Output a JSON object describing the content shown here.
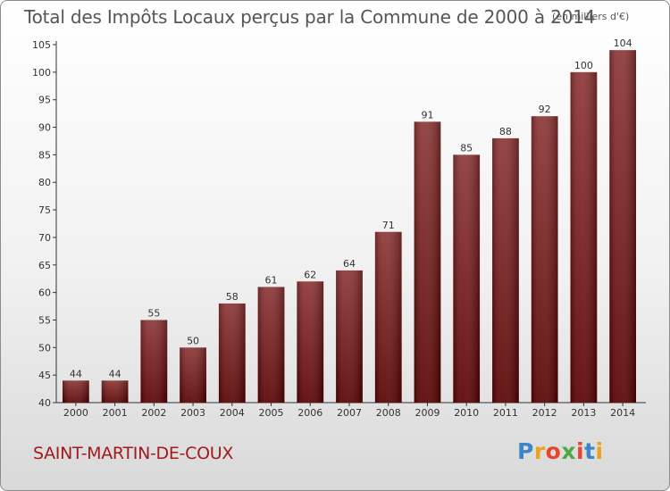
{
  "header": {
    "title": "Total des Impôts Locaux perçus par la Commune de 2000 à 2014",
    "unit": "(en milliers d'€)"
  },
  "footer": {
    "commune": "SAINT-MARTIN-DE-COUX",
    "logo": [
      "P",
      "r",
      "o",
      "x",
      "i",
      "t",
      "i"
    ]
  },
  "colors": {
    "bar_dark": "#5a0000",
    "bar_light": "#8e3535",
    "axis": "#333333",
    "commune": "#a01b1b"
  },
  "chart_data": {
    "type": "bar",
    "title": "Total des Impôts Locaux perçus par la Commune de 2000 à 2014",
    "xlabel": "",
    "ylabel": "(en milliers d'€)",
    "categories": [
      "2000",
      "2001",
      "2002",
      "2003",
      "2004",
      "2005",
      "2006",
      "2007",
      "2008",
      "2009",
      "2010",
      "2011",
      "2012",
      "2013",
      "2014"
    ],
    "values": [
      44,
      44,
      55,
      50,
      58,
      61,
      62,
      64,
      71,
      91,
      85,
      88,
      92,
      100,
      104
    ],
    "ylim": [
      40,
      105
    ],
    "yticks": [
      40,
      45,
      50,
      55,
      60,
      65,
      70,
      75,
      80,
      85,
      90,
      95,
      100,
      105
    ],
    "grid": false,
    "legend": "none"
  }
}
